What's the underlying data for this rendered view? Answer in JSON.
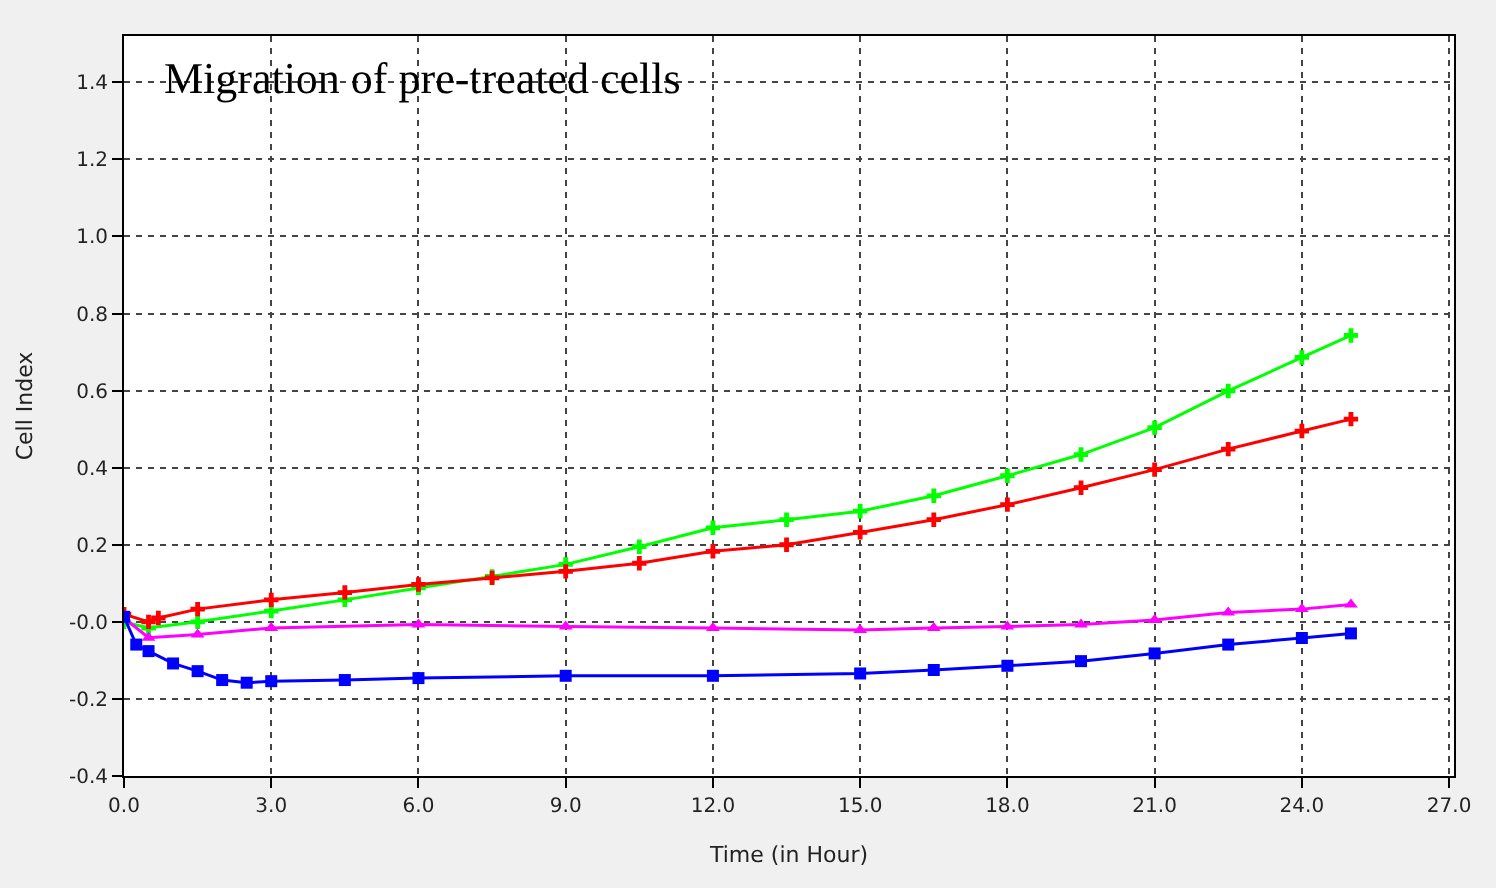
{
  "chart_data": {
    "type": "line",
    "title": "Migration of pre-treated cells",
    "xlabel": "Time (in Hour)",
    "ylabel": "Cell Index",
    "xlim": [
      0,
      27.1
    ],
    "ylim": [
      -0.4,
      1.52
    ],
    "xticks": [
      {
        "value": 0,
        "label": "0.0"
      },
      {
        "value": 3,
        "label": "3.0"
      },
      {
        "value": 6,
        "label": "6.0"
      },
      {
        "value": 9,
        "label": "9.0"
      },
      {
        "value": 12,
        "label": "12.0"
      },
      {
        "value": 15,
        "label": "15.0"
      },
      {
        "value": 18,
        "label": "18.0"
      },
      {
        "value": 21,
        "label": "21.0"
      },
      {
        "value": 24,
        "label": "24.0"
      },
      {
        "value": 27,
        "label": "27.0"
      }
    ],
    "yticks": [
      {
        "value": -0.4,
        "label": "-0.4"
      },
      {
        "value": -0.2,
        "label": "-0.2"
      },
      {
        "value": 0,
        "label": "-0.0"
      },
      {
        "value": 0.2,
        "label": "0.2"
      },
      {
        "value": 0.4,
        "label": "0.4"
      },
      {
        "value": 0.6,
        "label": "0.6"
      },
      {
        "value": 0.8,
        "label": "0.8"
      },
      {
        "value": 1.0,
        "label": "1.0"
      },
      {
        "value": 1.2,
        "label": "1.2"
      },
      {
        "value": 1.4,
        "label": "1.4"
      }
    ],
    "grid": true,
    "series": [
      {
        "color": "#00ff00",
        "marker": "cross",
        "x": [
          0,
          0.5,
          1.5,
          3,
          4.5,
          6,
          7.5,
          9,
          10.5,
          12,
          13.5,
          15,
          16.5,
          18,
          19.5,
          21,
          22.5,
          24,
          25
        ],
        "values": [
          0.0,
          -0.016,
          0.0,
          0.028,
          0.057,
          0.088,
          0.118,
          0.149,
          0.195,
          0.244,
          0.265,
          0.287,
          0.327,
          0.379,
          0.434,
          0.504,
          0.599,
          0.686,
          0.743
        ]
      },
      {
        "color": "#ff0000",
        "marker": "cross",
        "x": [
          0,
          0.5,
          0.7,
          1.5,
          3,
          4.5,
          6,
          7.5,
          9,
          10.5,
          12,
          13.5,
          15,
          16.5,
          18,
          19.5,
          21,
          22.5,
          24,
          25
        ],
        "values": [
          0.02,
          0.0,
          0.01,
          0.033,
          0.057,
          0.076,
          0.097,
          0.114,
          0.131,
          0.152,
          0.183,
          0.2,
          0.232,
          0.265,
          0.304,
          0.348,
          0.395,
          0.448,
          0.495,
          0.526
        ]
      },
      {
        "color": "#ff00ff",
        "marker": "triangle",
        "x": [
          0,
          0.5,
          1.5,
          3,
          6,
          9,
          12,
          15,
          16.5,
          18,
          19.5,
          21,
          22.5,
          24,
          25
        ],
        "values": [
          0.01,
          -0.041,
          -0.033,
          -0.016,
          -0.007,
          -0.012,
          -0.016,
          -0.021,
          -0.016,
          -0.012,
          -0.007,
          0.005,
          0.024,
          0.033,
          0.045
        ]
      },
      {
        "color": "#0000ff",
        "marker": "square",
        "x": [
          0,
          0.25,
          0.5,
          1,
          1.5,
          2,
          2.5,
          3,
          4.5,
          6,
          9,
          12,
          15,
          16.5,
          18,
          19.5,
          21,
          22.5,
          24,
          25
        ],
        "values": [
          0.013,
          -0.059,
          -0.076,
          -0.108,
          -0.128,
          -0.151,
          -0.158,
          -0.154,
          -0.151,
          -0.146,
          -0.14,
          -0.14,
          -0.134,
          -0.125,
          -0.114,
          -0.102,
          -0.082,
          -0.059,
          -0.042,
          -0.03
        ]
      }
    ]
  }
}
